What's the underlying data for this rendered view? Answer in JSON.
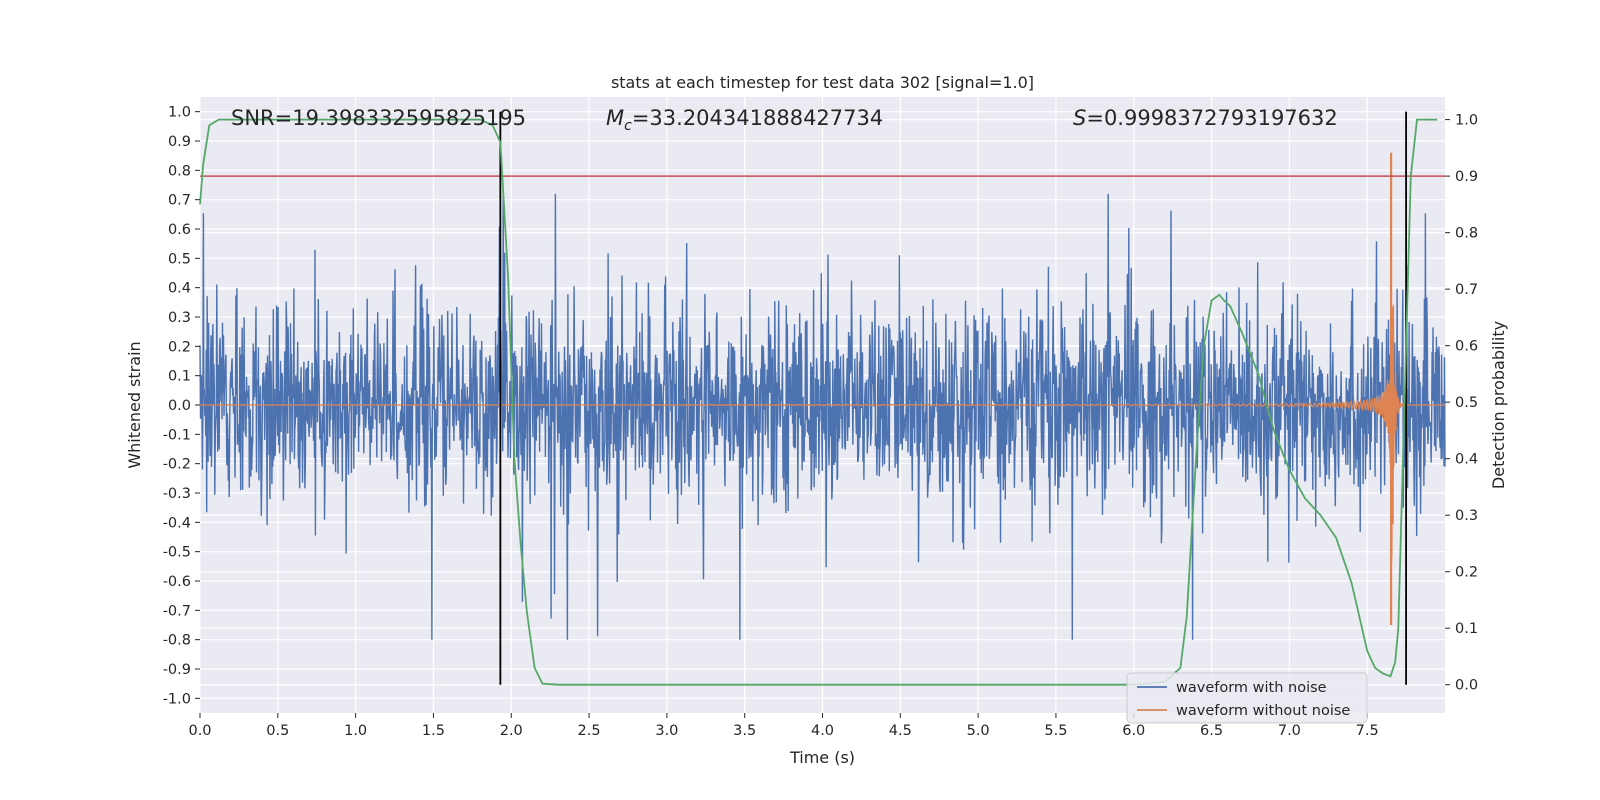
{
  "chart_data": {
    "type": "line",
    "title": "stats at each timestep for test data 302 [signal=1.0]",
    "xlabel": "Time (s)",
    "ylabel": "Whitened strain",
    "y2label": "Detection probability",
    "xlim": [
      0.0,
      8.0
    ],
    "ylim": [
      -1.05,
      1.05
    ],
    "y2lim": [
      -0.05,
      1.04
    ],
    "xticks": [
      0.0,
      0.5,
      1.0,
      1.5,
      2.0,
      2.5,
      3.0,
      3.5,
      4.0,
      4.5,
      5.0,
      5.5,
      6.0,
      6.5,
      7.0,
      7.5
    ],
    "yticks": [
      -1.0,
      -0.9,
      -0.8,
      -0.7,
      -0.6,
      -0.5,
      -0.4,
      -0.3,
      -0.2,
      -0.1,
      0.0,
      0.1,
      0.2,
      0.3,
      0.4,
      0.5,
      0.6,
      0.7,
      0.8,
      0.9,
      1.0
    ],
    "y2ticks": [
      0.0,
      0.1,
      0.2,
      0.3,
      0.4,
      0.5,
      0.6,
      0.7,
      0.8,
      0.9,
      1.0
    ],
    "grid": true,
    "legend_position": "bottom-right",
    "annotations": {
      "snr": "SNR=19.398332595825195",
      "mc": "=33.204341888427734",
      "mc_symbol": "M",
      "mc_subscript": "c",
      "s": "=0.9998372793197632",
      "s_symbol": "S"
    },
    "series": [
      {
        "name": "waveform with noise",
        "color": "#4c72b0",
        "axis": "left",
        "noise_std": 0.16,
        "noise_range": [
          -0.8,
          0.72
        ]
      },
      {
        "name": "waveform without noise",
        "color": "#dd8452",
        "axis": "left",
        "chirp_start": 3.0,
        "merger_time": 7.66,
        "merger_peak": [
          0.86,
          -0.75
        ]
      },
      {
        "color": "#55a868",
        "axis": "right",
        "x": [
          0.0,
          0.02,
          0.06,
          0.12,
          0.2,
          0.5,
          1.0,
          1.5,
          1.8,
          1.88,
          1.93,
          1.98,
          2.02,
          2.06,
          2.1,
          2.15,
          2.2,
          2.3,
          2.5,
          3.0,
          3.5,
          4.0,
          4.5,
          5.0,
          5.5,
          6.0,
          6.2,
          6.3,
          6.34,
          6.4,
          6.45,
          6.5,
          6.55,
          6.58,
          6.62,
          6.7,
          6.8,
          6.9,
          7.0,
          7.1,
          7.2,
          7.3,
          7.4,
          7.5,
          7.55,
          7.6,
          7.65,
          7.68,
          7.7,
          7.72,
          7.75,
          7.78,
          7.82,
          7.86,
          7.9,
          7.95
        ],
        "y": [
          0.85,
          0.92,
          0.99,
          1.0,
          1.0,
          1.0,
          1.0,
          1.0,
          1.0,
          0.99,
          0.96,
          0.72,
          0.4,
          0.25,
          0.13,
          0.03,
          0.002,
          0.0,
          0.0,
          0.0,
          0.0,
          0.0,
          0.0,
          0.0,
          0.0,
          0.0,
          0.005,
          0.03,
          0.12,
          0.4,
          0.6,
          0.68,
          0.69,
          0.68,
          0.67,
          0.62,
          0.55,
          0.45,
          0.38,
          0.33,
          0.3,
          0.26,
          0.18,
          0.06,
          0.03,
          0.02,
          0.015,
          0.04,
          0.1,
          0.3,
          0.6,
          0.9,
          1.0,
          1.0,
          1.0,
          1.0
        ]
      }
    ],
    "hlines": [
      {
        "y2": 0.9,
        "color": "#c44e52"
      }
    ],
    "vlines": [
      {
        "x": 1.93,
        "color": "#000000"
      },
      {
        "x": 7.75,
        "color": "#000000"
      }
    ]
  }
}
